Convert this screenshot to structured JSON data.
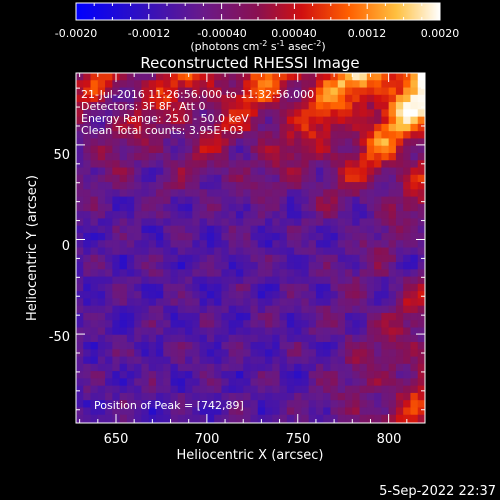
{
  "colorbar": {
    "ticks": [
      "-0.0020",
      "-0.0012",
      "-0.00040",
      "0.00040",
      "0.0012",
      "0.0020"
    ],
    "units_label": "(photons cm",
    "units_exp1": "-2",
    "units_mid1": " s",
    "units_exp2": "-1",
    "units_mid2": " asec",
    "units_exp3": "-2",
    "units_close": ")",
    "range": [
      -0.002,
      0.002
    ]
  },
  "chart_data": {
    "type": "heatmap",
    "title": "Reconstructed RHESSI Image",
    "xlabel": "Heliocentric X (arcsec)",
    "ylabel": "Heliocentric Y (arcsec)",
    "xlim": [
      628,
      820
    ],
    "ylim": [
      -97,
      88
    ],
    "xticks": [
      "650",
      "700",
      "750",
      "800"
    ],
    "yticks": [
      "50",
      "0",
      "-50"
    ],
    "xtick_values": [
      650,
      700,
      750,
      800
    ],
    "ytick_values": [
      50,
      0,
      -50
    ],
    "colormap": [
      "#0000ff",
      "#5a189a",
      "#7a1a7a",
      "#c21010",
      "#ff5500",
      "#ffb040",
      "#ffffe8"
    ],
    "annotations": [
      "21-Jul-2016 11:26:56.000 to 11:32:56.000",
      "Detectors: 3F 8F, Att 0",
      "Energy Range: 25.0 - 50.0 keV",
      "Clean    Total counts: 3.95E+03"
    ],
    "peak_label": "Position of Peak = [742,89]",
    "peak": [
      742,
      89
    ]
  },
  "timestamp": "5-Sep-2022 22:37"
}
